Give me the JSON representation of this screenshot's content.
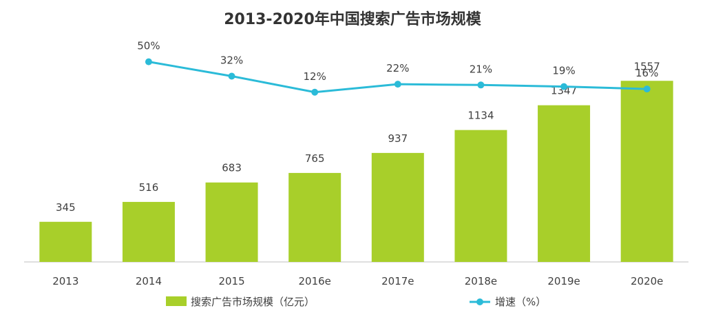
{
  "chart_data": {
    "type": "bar",
    "title": "2013-2020年中国搜索广告市场规模",
    "categories": [
      "2013",
      "2014",
      "2015",
      "2016e",
      "2017e",
      "2018e",
      "2019e",
      "2020e"
    ],
    "series": [
      {
        "name": "搜索广告市场规模（亿元）",
        "type": "bar",
        "values": [
          345,
          516,
          683,
          765,
          937,
          1134,
          1347,
          1557
        ],
        "labels": [
          "345",
          "516",
          "683",
          "765",
          "937",
          "1134",
          "1347",
          "1557"
        ],
        "color": "#a8cf2a"
      },
      {
        "name": "增速（%）",
        "type": "line",
        "values": [
          null,
          50,
          32,
          12,
          22,
          21,
          19,
          16
        ],
        "labels": [
          "",
          "50%",
          "32%",
          "12%",
          "22%",
          "21%",
          "19%",
          "16%"
        ],
        "color": "#2bbbd8"
      }
    ],
    "ylim": [
      0,
      1600
    ],
    "growth_ylim": [
      -200,
      60
    ],
    "grid": false,
    "legend_position": "bottom"
  }
}
